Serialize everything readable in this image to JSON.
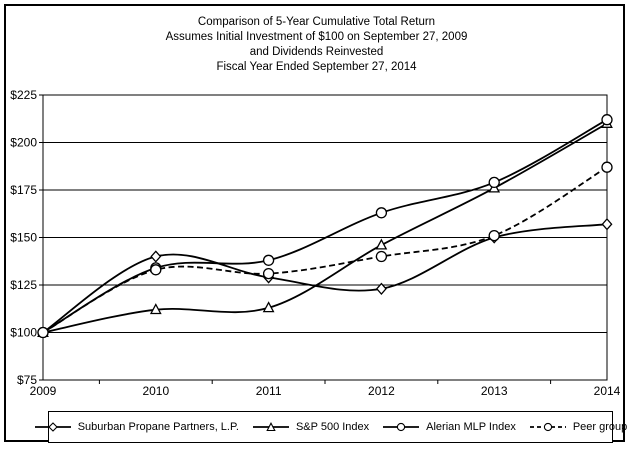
{
  "chart_data": {
    "type": "line",
    "title": "Comparison of 5-Year Cumulative Total Return",
    "title_lines": [
      "Comparison of 5-Year Cumulative Total Return",
      "Assumes Initial Investment of $100 on September 27, 2009",
      "and Dividends Reinvested",
      "Fiscal Year Ended September 27, 2014"
    ],
    "categories": [
      "2009",
      "2010",
      "2011",
      "2012",
      "2013",
      "2014"
    ],
    "series": [
      {
        "name": "Suburban Propane Partners, L.P.",
        "marker": "diamond",
        "dashed": false,
        "values": [
          100,
          140,
          129,
          123,
          150,
          157
        ]
      },
      {
        "name": "S&P 500 Index",
        "marker": "triangle",
        "dashed": false,
        "values": [
          100,
          112,
          113,
          146,
          176,
          210
        ]
      },
      {
        "name": "Alerian MLP Index",
        "marker": "circle",
        "dashed": false,
        "values": [
          100,
          134,
          138,
          163,
          179,
          212
        ]
      },
      {
        "name": "Peer group",
        "marker": "circle",
        "dashed": true,
        "values": [
          100,
          133,
          131,
          140,
          151,
          187
        ]
      }
    ],
    "xlabel": "",
    "ylabel": "",
    "ylim": [
      75,
      225
    ],
    "yticks": [
      75,
      100,
      125,
      150,
      175,
      200,
      225
    ],
    "ytick_prefix": "$",
    "grid": "horizontal",
    "line_smoothing": true,
    "legend_position": "bottom"
  },
  "colors": {
    "line": "#000000",
    "background": "#ffffff",
    "marker_fill": "#ffffff",
    "border": "#000000"
  }
}
